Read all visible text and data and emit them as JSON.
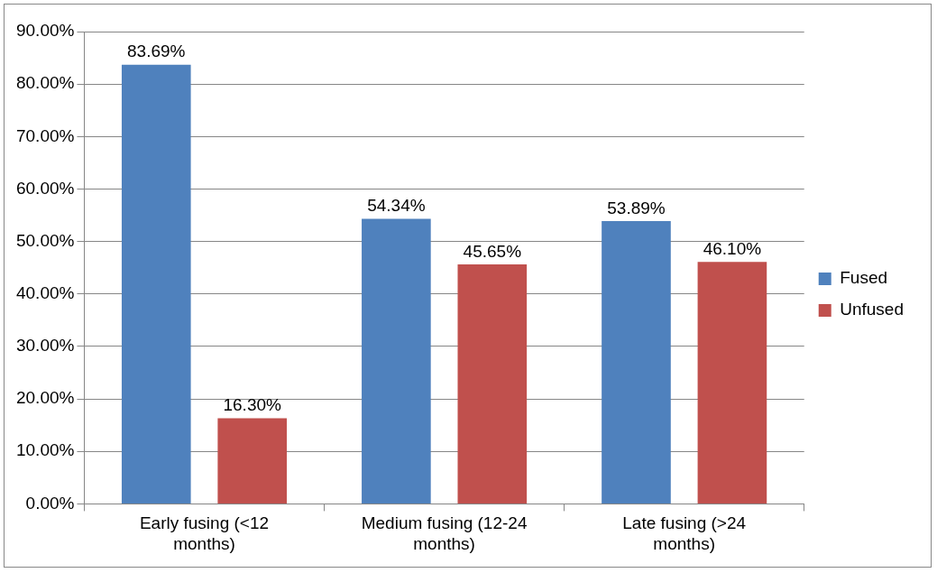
{
  "chart_data": {
    "type": "bar",
    "categories": [
      "Early fusing (<12 months)",
      "Medium fusing (12-24 months)",
      "Late fusing (>24 months)"
    ],
    "series": [
      {
        "name": "Fused",
        "color": "#4f81bd",
        "values": [
          83.69,
          54.34,
          53.89
        ],
        "value_labels": [
          "83.69%",
          "54.34%",
          "53.89%"
        ]
      },
      {
        "name": "Unfused",
        "color": "#c0504d",
        "values": [
          16.3,
          45.65,
          46.1
        ],
        "value_labels": [
          "16.30%",
          "45.65%",
          "46.10%"
        ]
      }
    ],
    "ylim": [
      0,
      90
    ],
    "yticks": [
      {
        "value": 0,
        "label": "0.00%"
      },
      {
        "value": 10,
        "label": "10.00%"
      },
      {
        "value": 20,
        "label": "20.00%"
      },
      {
        "value": 30,
        "label": "30.00%"
      },
      {
        "value": 40,
        "label": "40.00%"
      },
      {
        "value": 50,
        "label": "50.00%"
      },
      {
        "value": 60,
        "label": "60.00%"
      },
      {
        "value": 70,
        "label": "70.00%"
      },
      {
        "value": 80,
        "label": "80.00%"
      },
      {
        "value": 90,
        "label": "90.00%"
      }
    ],
    "grid": "y",
    "legend": "right"
  }
}
